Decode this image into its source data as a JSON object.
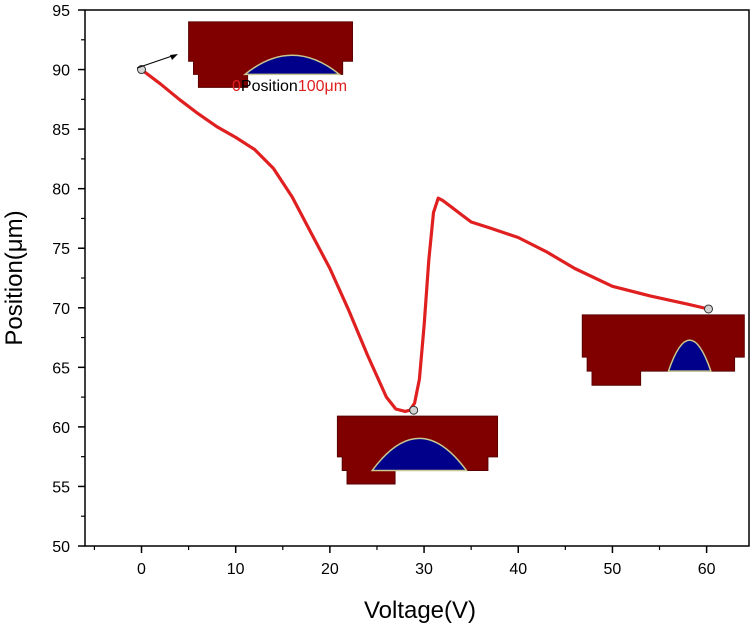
{
  "chart_data": {
    "type": "line",
    "title": "",
    "xlabel": "Voltage(V)",
    "ylabel": "Position(μm)",
    "xlim": [
      -6,
      64.5
    ],
    "ylim": [
      50,
      95
    ],
    "x_ticks": [
      0,
      10,
      20,
      30,
      40,
      50,
      60
    ],
    "y_ticks": [
      50,
      55,
      60,
      65,
      70,
      75,
      80,
      85,
      90,
      95
    ],
    "grid": false,
    "series": [
      {
        "name": "Position",
        "color": "#e02020",
        "x": [
          0,
          2,
          4,
          6,
          8,
          10,
          12,
          14,
          16,
          18,
          20,
          22,
          24,
          26,
          27,
          28,
          28.5,
          29,
          29.5,
          30,
          30.5,
          31,
          31.5,
          32,
          33,
          34,
          35,
          37,
          40,
          43,
          46,
          50,
          54,
          58,
          60.2
        ],
        "y": [
          90,
          88.8,
          87.5,
          86.3,
          85.2,
          84.3,
          83.3,
          81.7,
          79.3,
          76.3,
          73.3,
          69.8,
          66.0,
          62.5,
          61.5,
          61.3,
          61.4,
          62.0,
          64.0,
          68.5,
          74.0,
          78.0,
          79.2,
          79.0,
          78.4,
          77.8,
          77.2,
          76.7,
          75.9,
          74.7,
          73.3,
          71.8,
          71.0,
          70.3,
          69.9
        ]
      }
    ],
    "markers": [
      {
        "x": 0,
        "y": 90
      },
      {
        "x": 28.9,
        "y": 61.4
      },
      {
        "x": 60.2,
        "y": 69.9
      }
    ],
    "annotation": {
      "start_value": "0",
      "label": "Position",
      "end_value": "100μm",
      "label_color": "#000000",
      "value_color": "#e02020"
    },
    "insets": [
      {
        "name": "inset-top",
        "x0": 5,
        "x1": 22.4,
        "y_top": 94,
        "y_bottom": 88.5,
        "bubble_center": 16,
        "bubble_width": 10,
        "bubble_height": 1.6
      },
      {
        "name": "inset-middle",
        "x0": 20.8,
        "x1": 37.8,
        "y_top": 60.9,
        "y_bottom": 55.2,
        "bubble_center": 29.5,
        "bubble_width": 10,
        "bubble_height": 2.7
      },
      {
        "name": "inset-right",
        "x0": 46.8,
        "x1": 64,
        "y_top": 69.4,
        "y_bottom": 63.5,
        "bubble_center": 58.2,
        "bubble_width": 4.5,
        "bubble_height": 2.6
      }
    ],
    "colors": {
      "inset_fill": "#800000",
      "inset_edge": "#5a0000",
      "droplet": "#00008b",
      "droplet_edge": "#c8c890",
      "marker_fill": "#d3d3d3"
    }
  }
}
